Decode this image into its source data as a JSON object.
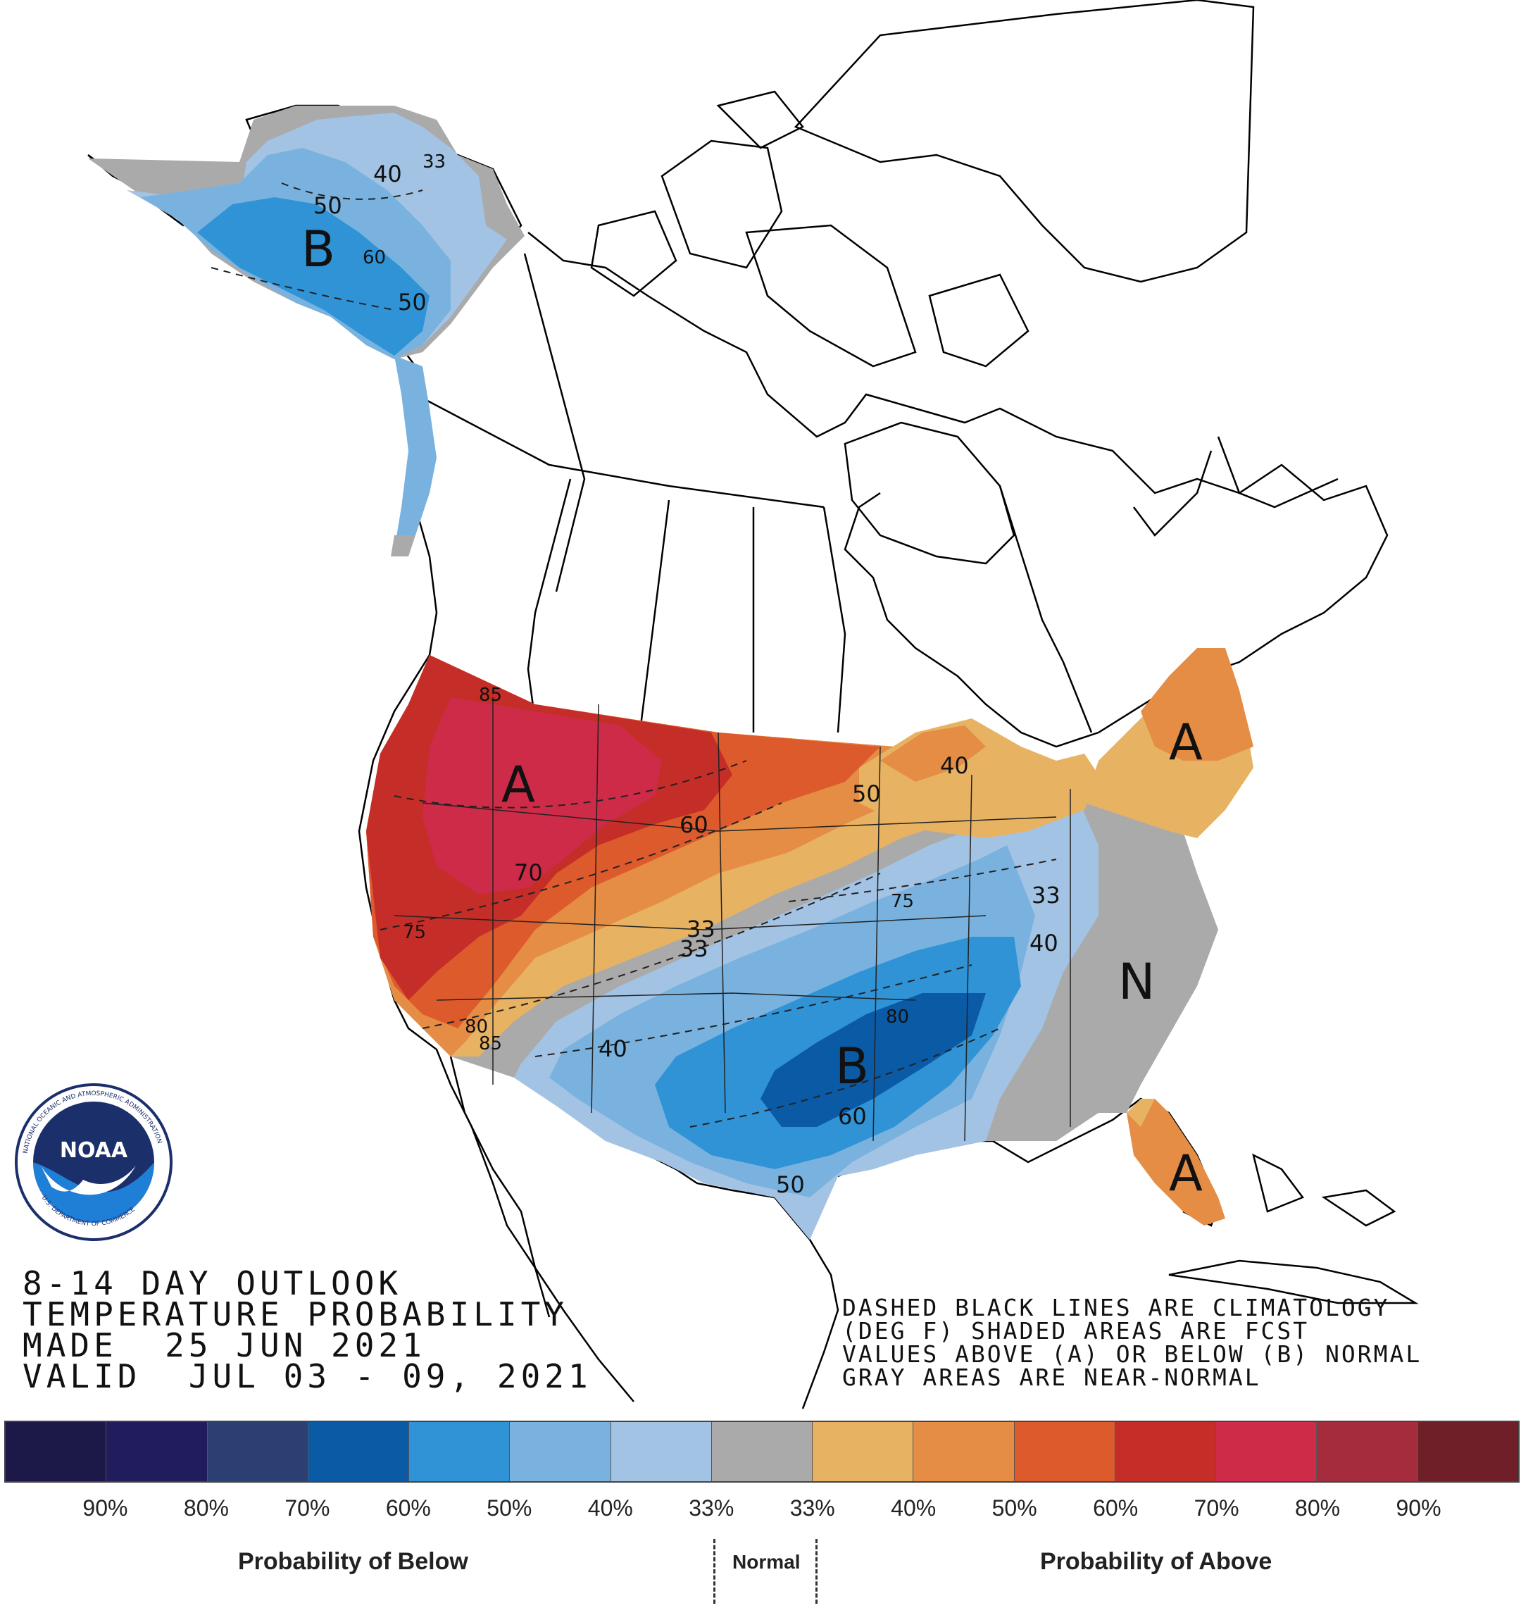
{
  "title": {
    "line1": "8-14 DAY OUTLOOK",
    "line2": "TEMPERATURE PROBABILITY",
    "line3": "MADE  25 JUN 2021",
    "line4": "VALID  JUL 03 - 09, 2021"
  },
  "notes": {
    "line1": "DASHED BLACK LINES ARE CLIMATOLOGY",
    "line2": "(DEG F) SHADED AREAS ARE FCST",
    "line3": "VALUES ABOVE (A) OR BELOW (B) NORMAL",
    "line4": "GRAY AREAS ARE NEAR-NORMAL"
  },
  "map_labels": {
    "alaska_b": "B",
    "west_a": "A",
    "south_b": "B",
    "east_n": "N",
    "northeast_a": "A",
    "florida_a": "A",
    "ak_40": "40",
    "ak_50": "50",
    "ak_60": "60",
    "ak_50b": "50",
    "ak_33": "33",
    "w_85": "85",
    "w_70": "70",
    "w_60": "60",
    "w_50": "50",
    "w_40": "40",
    "w_75": "75",
    "w_80": "80",
    "w_85b": "85",
    "c_33": "33",
    "c_33b": "33",
    "s_40": "40",
    "s_80": "80",
    "s_60": "60",
    "s_50": "50",
    "s_75": "75",
    "e_33": "33",
    "e_40": "40"
  },
  "legend": {
    "swatches": [
      {
        "category": "below 90%+",
        "color": "#1c1848"
      },
      {
        "category": "below 80%",
        "color": "#211c5c"
      },
      {
        "category": "below 70%",
        "color": "#2c3f73"
      },
      {
        "category": "below 60%",
        "color": "#0b5aa6"
      },
      {
        "category": "below 50%",
        "color": "#2f93d6"
      },
      {
        "category": "below 40%",
        "color": "#79b2df"
      },
      {
        "category": "below 33%",
        "color": "#a3c3e4"
      },
      {
        "category": "near normal",
        "color": "#aaaaaa"
      },
      {
        "category": "above 33%",
        "color": "#e8b263"
      },
      {
        "category": "above 40%",
        "color": "#e58d45"
      },
      {
        "category": "above 50%",
        "color": "#dd5a2c"
      },
      {
        "category": "above 60%",
        "color": "#c52d28"
      },
      {
        "category": "above 70%",
        "color": "#cd2b48"
      },
      {
        "category": "above 80%",
        "color": "#a52c3c"
      },
      {
        "category": "above 90%+",
        "color": "#6e1f28"
      }
    ],
    "ticks": [
      "90%",
      "80%",
      "70%",
      "60%",
      "50%",
      "40%",
      "33%",
      "33%",
      "40%",
      "50%",
      "60%",
      "70%",
      "80%",
      "90%"
    ],
    "below_label": "Probability of Below",
    "normal_label": "Normal",
    "above_label": "Probability of Above"
  },
  "logo": {
    "text": "NOAA",
    "ring_text": "NATIONAL OCEANIC AND ATMOSPHERIC ADMINISTRATION",
    "ring_text_bottom": "U.S. DEPARTMENT OF COMMERCE"
  }
}
